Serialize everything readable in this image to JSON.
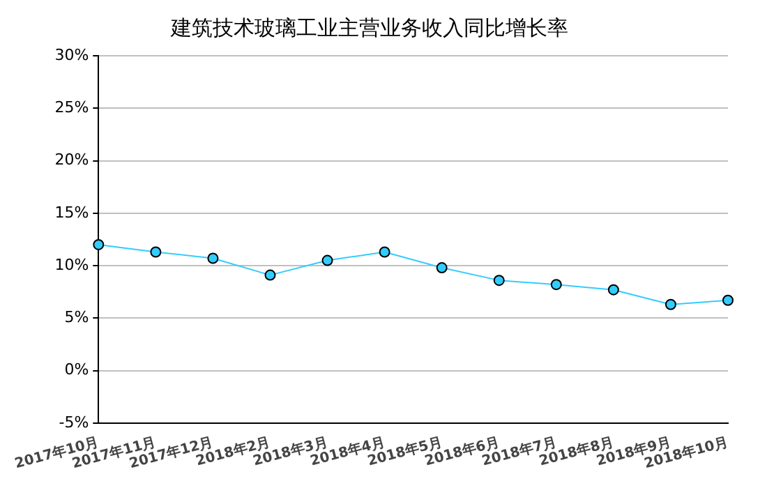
{
  "chart_data": {
    "type": "line",
    "title": "建筑技术玻璃工业主营业务收入同比增长率",
    "categories": [
      "2017年10月",
      "2017年11月",
      "2017年12月",
      "2018年2月",
      "2018年3月",
      "2018年4月",
      "2018年5月",
      "2018年6月",
      "2018年7月",
      "2018年8月",
      "2018年9月",
      "2018年10月"
    ],
    "series": [
      {
        "color": "#33ccff",
        "values": [
          12.0,
          11.3,
          10.7,
          9.1,
          10.5,
          11.3,
          9.8,
          8.6,
          8.2,
          7.7,
          6.3,
          6.7
        ]
      }
    ],
    "ylim": [
      -5,
      30
    ],
    "yticks": [
      {
        "value": -5,
        "label": "-5%"
      },
      {
        "value": 0,
        "label": "0%"
      },
      {
        "value": 5,
        "label": "5%"
      },
      {
        "value": 10,
        "label": "10%"
      },
      {
        "value": 15,
        "label": "15%"
      },
      {
        "value": 20,
        "label": "20%"
      },
      {
        "value": 25,
        "label": "25%"
      },
      {
        "value": 30,
        "label": "30%"
      }
    ],
    "grid": "y",
    "legend": false,
    "marker": "circle",
    "line_style": "solid"
  }
}
